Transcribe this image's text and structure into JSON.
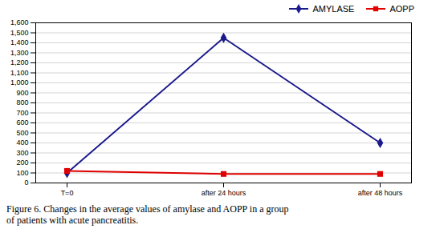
{
  "chart_data": {
    "type": "line",
    "categories": [
      "T=0",
      "after 24 hours",
      "after 48 hours"
    ],
    "series": [
      {
        "name": "AMYLASE",
        "color": "#1a1a8c",
        "marker": "diamond",
        "values": [
          100,
          1450,
          400
        ]
      },
      {
        "name": "AOPP",
        "color": "#e00000",
        "marker": "square",
        "values": [
          120,
          90,
          90
        ]
      }
    ],
    "ylim": [
      0,
      1600
    ],
    "yticks": [
      0,
      100,
      200,
      300,
      400,
      500,
      600,
      700,
      800,
      900,
      1000,
      1100,
      1200,
      1300,
      1400,
      1500,
      1600
    ],
    "grid": true,
    "legend": "upper right",
    "caption": "Figure 6. Changes in the average values of amylase and AOPP in a group\nof patients with acute pancreatitis."
  }
}
